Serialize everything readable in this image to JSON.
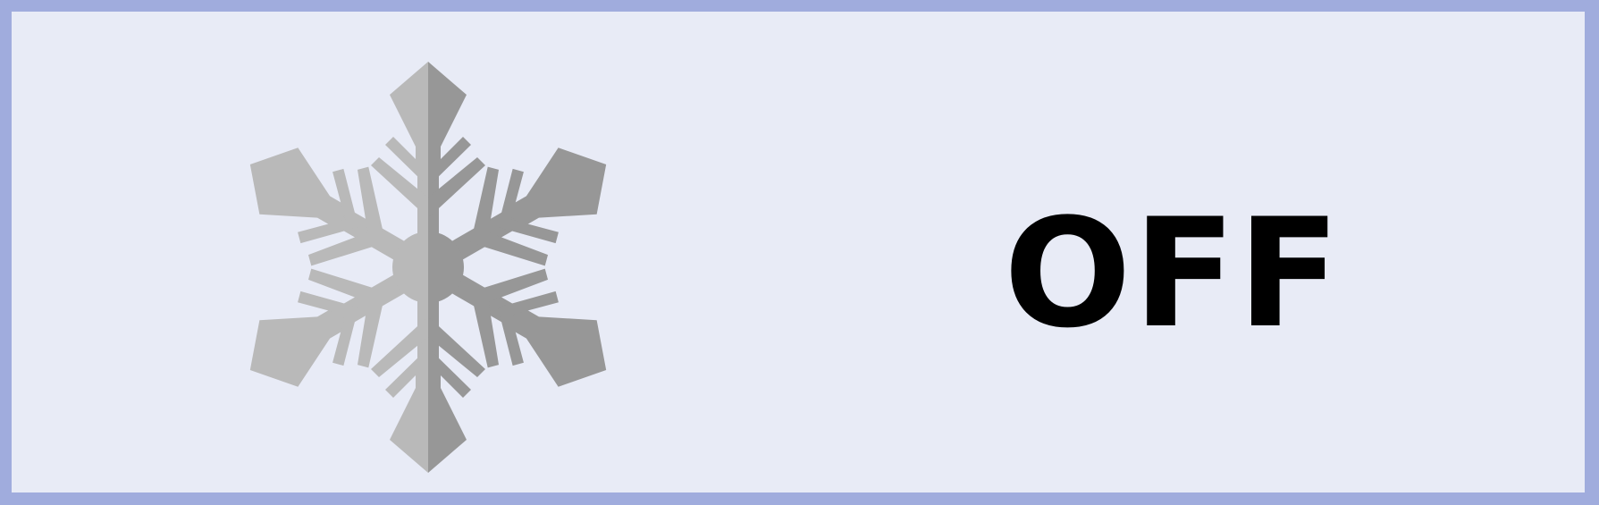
{
  "widget": {
    "status_text": "OFF",
    "icon": "snowflake-icon",
    "colors": {
      "border": "#a0acdd",
      "background": "#e8ebf6",
      "icon_light": "#b9b9b9",
      "icon_dark": "#979797",
      "text": "#000000"
    }
  }
}
